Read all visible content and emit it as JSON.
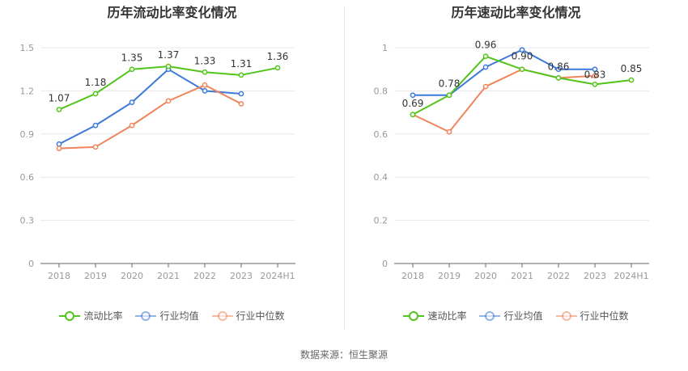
{
  "chart_data": [
    {
      "type": "line",
      "title": "历年流动比率变化情况",
      "categories": [
        "2018",
        "2019",
        "2020",
        "2021",
        "2022",
        "2023",
        "2024H1"
      ],
      "ylim": [
        0,
        1.5
      ],
      "yticks": [
        "0",
        "0.3",
        "0.6",
        "0.9",
        "1.2",
        "1.5"
      ],
      "grid": true,
      "legend_position": "bottom",
      "series": [
        {
          "name": "流动比率",
          "color": "#52c41a",
          "labeled": true,
          "values": [
            1.07,
            1.18,
            1.35,
            1.37,
            1.33,
            1.31,
            1.36
          ],
          "labels": [
            "1.07",
            "1.18",
            "1.35",
            "1.37",
            "1.33",
            "1.31",
            "1.36"
          ]
        },
        {
          "name": "行业均值",
          "color": "#3c78d8",
          "labeled": false,
          "values": [
            0.83,
            0.96,
            1.12,
            1.35,
            1.2,
            1.18,
            null
          ]
        },
        {
          "name": "行业中位数",
          "color": "#f0845a",
          "labeled": false,
          "values": [
            0.8,
            0.81,
            0.96,
            1.13,
            1.24,
            1.11,
            null
          ]
        }
      ]
    },
    {
      "type": "line",
      "title": "历年速动比率变化情况",
      "categories": [
        "2018",
        "2019",
        "2020",
        "2021",
        "2022",
        "2023",
        "2024H1"
      ],
      "ylim": [
        0,
        1
      ],
      "yticks": [
        "0",
        "0.2",
        "0.4",
        "0.6",
        "0.8",
        "1"
      ],
      "grid": true,
      "legend_position": "bottom",
      "series": [
        {
          "name": "速动比率",
          "color": "#52c41a",
          "labeled": true,
          "values": [
            0.69,
            0.78,
            0.96,
            0.9,
            0.86,
            0.83,
            0.85
          ],
          "labels": [
            "0.69",
            "0.78",
            "0.96",
            "0.90",
            "0.86",
            "0.83",
            "0.85"
          ]
        },
        {
          "name": "行业均值",
          "color": "#3c78d8",
          "labeled": false,
          "values": [
            0.78,
            0.78,
            0.91,
            0.99,
            0.9,
            0.9,
            null
          ]
        },
        {
          "name": "行业中位数",
          "color": "#f0845a",
          "labeled": false,
          "values": [
            0.69,
            0.61,
            0.82,
            0.9,
            0.86,
            0.87,
            null
          ]
        }
      ]
    }
  ],
  "source": "数据来源：恒生聚源"
}
